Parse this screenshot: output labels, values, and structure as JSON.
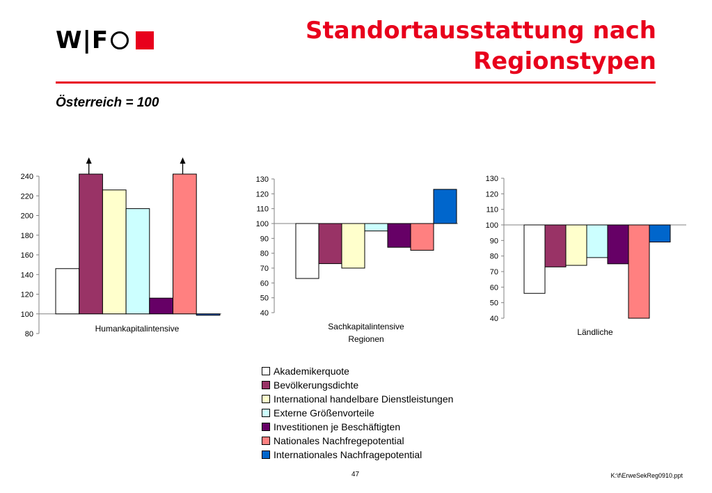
{
  "header": {
    "logo_text": "W|F",
    "title_line1": "Standortausstattung nach",
    "title_line2": "Regionstypen",
    "subtitle": "Österreich = 100"
  },
  "colors": {
    "accent": "#e8001c",
    "series": [
      "#ffffff",
      "#993366",
      "#ffffcc",
      "#ccffff",
      "#660066",
      "#ff8080",
      "#0066cc"
    ]
  },
  "chart_data": [
    {
      "type": "bar",
      "baseline": 100,
      "category": "Humankapitalintensive",
      "values": [
        146,
        252,
        226,
        207,
        116,
        252,
        99
      ],
      "ylim": [
        80,
        250
      ],
      "yticks": [
        80,
        100,
        120,
        140,
        160,
        180,
        200,
        220,
        240
      ],
      "clipped_indices": [
        1,
        5
      ]
    },
    {
      "type": "bar",
      "baseline": 100,
      "category_lines": [
        "Sachkapitalintensive",
        "Regionen"
      ],
      "values": [
        63,
        73,
        70,
        95,
        84,
        82,
        123
      ],
      "ylim": [
        40,
        130
      ],
      "yticks": [
        40,
        50,
        60,
        70,
        80,
        90,
        100,
        110,
        120,
        130
      ]
    },
    {
      "type": "bar",
      "baseline": 100,
      "category": "Ländliche",
      "values": [
        56,
        73,
        74,
        79,
        75,
        40,
        89
      ],
      "ylim": [
        40,
        130
      ],
      "yticks": [
        40,
        50,
        60,
        70,
        80,
        90,
        100,
        110,
        120,
        130
      ]
    }
  ],
  "legend": [
    "Akademikerquote",
    "Bevölkerungsdichte",
    "International handelbare Dienstleistungen",
    "Externe Größenvorteile",
    "Investitionen je Beschäftigten",
    "Nationales Nachfregepotential",
    "Internationales Nachfragepotential"
  ],
  "footer": {
    "page": "47",
    "file": "K:\\f\\ErweSekReg0910.ppt"
  }
}
